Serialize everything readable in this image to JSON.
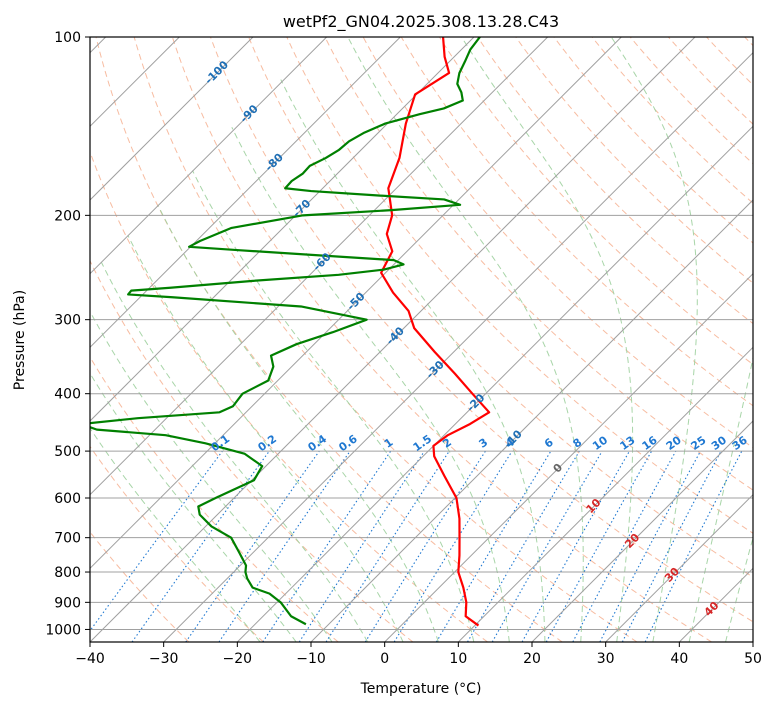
{
  "chart_data": {
    "type": "skew-t",
    "title": "wetPf2_GN04.2025.308.13.28.C43",
    "xlabel": "Temperature (°C)",
    "ylabel": "Pressure (hPa)",
    "xlim": [
      -40,
      50
    ],
    "ylim": [
      1050,
      100
    ],
    "y_scale": "log",
    "grid": true,
    "x_ticks": [
      -40,
      -30,
      -20,
      -10,
      0,
      10,
      20,
      30,
      40,
      50
    ],
    "x_tick_labels": [
      "−40",
      "−30",
      "−20",
      "−10",
      "0",
      "10",
      "20",
      "30",
      "40",
      "50"
    ],
    "y_ticks": [
      1000,
      900,
      800,
      700,
      600,
      500,
      400,
      300,
      200,
      100
    ],
    "y_tick_labels": [
      "1000",
      "900",
      "800",
      "700",
      "600",
      "500",
      "400",
      "300",
      "200",
      "100"
    ],
    "colors": {
      "temperature": "#ff0000",
      "dewpoint": "#008000",
      "isotherm": "#a0a0a0",
      "isobar": "#a0a0a0",
      "dry_adiabat": "#f4a582",
      "moist_adiabat": "#9fd09f",
      "mixing_ratio": "#1f78d1",
      "label_blue": "#1f6fb5",
      "label_red": "#d62728",
      "label_gray": "#666666",
      "outside_adiabat": "#d8c8b0"
    },
    "series": [
      {
        "name": "Temperature",
        "color": "#ff0000",
        "pressure": [
          985,
          950,
          900,
          850,
          800,
          750,
          700,
          650,
          600,
          550,
          510,
          490,
          470,
          450,
          430,
          400,
          370,
          340,
          310,
          290,
          270,
          250,
          230,
          215,
          200,
          180,
          160,
          140,
          125,
          115,
          108,
          100
        ],
        "temperature": [
          10.5,
          7.5,
          5.7,
          3.3,
          0.5,
          -1.6,
          -4.0,
          -6.6,
          -9.8,
          -14.5,
          -18.5,
          -20.0,
          -19.5,
          -18.0,
          -17.0,
          -21.8,
          -26.9,
          -32.6,
          -38.6,
          -41.7,
          -46.3,
          -50.6,
          -52.0,
          -55.1,
          -56.9,
          -61.1,
          -63.7,
          -67.5,
          -70.2,
          -68.5,
          -71.3,
          -74.2
        ]
      },
      {
        "name": "Dewpoint",
        "color": "#008000",
        "pressure": [
          980,
          950,
          900,
          870,
          850,
          820,
          800,
          780,
          740,
          700,
          670,
          640,
          620,
          600,
          560,
          530,
          505,
          485,
          470,
          460,
          450,
          440,
          430,
          420,
          400,
          380,
          360,
          345,
          330,
          315,
          300,
          285,
          275,
          272,
          268,
          265,
          258,
          252,
          247,
          242,
          238,
          234,
          229,
          226,
          221,
          210,
          200,
          196,
          192,
          188,
          185,
          182,
          180,
          175,
          170,
          165,
          160,
          155,
          150,
          145,
          140,
          135,
          132,
          128,
          124,
          120,
          115,
          110,
          105,
          100
        ],
        "temperature": [
          -13.1,
          -16.2,
          -19.5,
          -22.2,
          -25.3,
          -27.3,
          -28.4,
          -29.2,
          -32.0,
          -35.0,
          -39.2,
          -42.4,
          -43.7,
          -42.5,
          -39.7,
          -40.5,
          -44.6,
          -51.3,
          -57.8,
          -67.9,
          -70.8,
          -63.9,
          -53.6,
          -52.6,
          -53.0,
          -51.3,
          -52.5,
          -54.3,
          -52.4,
          -49.1,
          -46.2,
          -56.9,
          -75.6,
          -82.0,
          -82.1,
          -77.2,
          -66.9,
          -56.1,
          -50.7,
          -48.7,
          -50.6,
          -60.5,
          -73.0,
          -80.2,
          -79.5,
          -77.0,
          -69.0,
          -57.7,
          -49.1,
          -52.0,
          -62.0,
          -71.2,
          -75.1,
          -75.2,
          -74.7,
          -74.8,
          -73.7,
          -73.0,
          -72.8,
          -71.9,
          -70.3,
          -66.9,
          -64.4,
          -62.9,
          -64.2,
          -65.9,
          -67.1,
          -67.9,
          -68.8,
          -69.2
        ]
      }
    ],
    "mixing_ratio_labels": [
      "0.1",
      "0.2",
      "0.4",
      "0.6",
      "1",
      "1.5",
      "2",
      "3",
      "4",
      "6",
      "8",
      "10",
      "13",
      "16",
      "20",
      "25",
      "30",
      "36"
    ],
    "mixing_ratio_values": [
      0.1,
      0.2,
      0.4,
      0.6,
      1,
      1.5,
      2,
      3,
      4,
      6,
      8,
      10,
      13,
      16,
      20,
      25,
      30,
      36
    ],
    "adiabat_labels_blue": [
      {
        "text": "-100",
        "p": 115
      },
      {
        "text": "-90",
        "p": 135
      },
      {
        "text": "-80",
        "p": 163
      },
      {
        "text": "-70",
        "p": 195
      },
      {
        "text": "-60",
        "p": 240
      },
      {
        "text": "-50",
        "p": 280
      },
      {
        "text": "-40",
        "p": 320
      },
      {
        "text": "-30",
        "p": 365
      },
      {
        "text": "-20",
        "p": 415
      },
      {
        "text": "-10",
        "p": 478
      }
    ],
    "adiabat_labels_other": [
      {
        "text": "0",
        "p": 535,
        "color": "gray"
      },
      {
        "text": "10",
        "p": 620,
        "color": "red"
      },
      {
        "text": "20",
        "p": 710,
        "color": "red"
      },
      {
        "text": "30",
        "p": 810,
        "color": "red"
      },
      {
        "text": "40",
        "p": 925,
        "color": "red"
      }
    ]
  }
}
